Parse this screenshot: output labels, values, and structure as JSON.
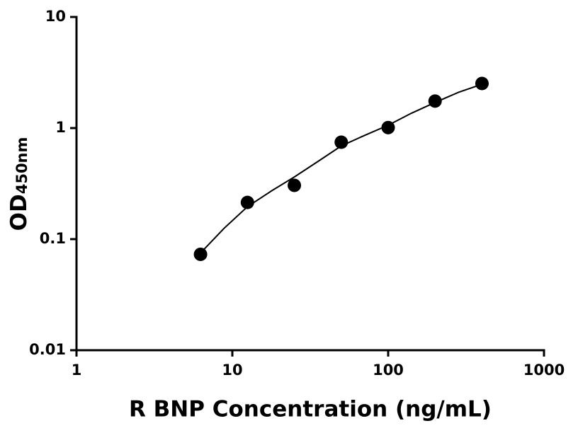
{
  "chart_data": {
    "type": "scatter",
    "x_label": "R BNP Concentration (ng/mL)",
    "y_label": "OD",
    "y_label_subscript": "450nm",
    "x_log": true,
    "y_log": true,
    "xlim": [
      1,
      1000
    ],
    "ylim": [
      0.01,
      10
    ],
    "xticks": [
      1,
      10,
      100,
      1000
    ],
    "yticks": [
      0.01,
      0.1,
      1,
      10
    ],
    "color": "#000000",
    "series": [
      {
        "x": [
          6.25,
          12.5,
          25,
          50,
          100,
          200,
          400
        ],
        "values": [
          0.073,
          0.214,
          0.305,
          0.746,
          1.01,
          1.75,
          2.52
        ]
      }
    ],
    "fit": {
      "x": [
        6.25,
        8.84,
        12.5,
        17.7,
        25,
        35.4,
        50,
        70.7,
        100,
        141,
        200,
        283,
        400
      ],
      "values": [
        0.075,
        0.125,
        0.196,
        0.27,
        0.363,
        0.5,
        0.69,
        0.86,
        1.06,
        1.36,
        1.7,
        2.1,
        2.48
      ]
    }
  }
}
